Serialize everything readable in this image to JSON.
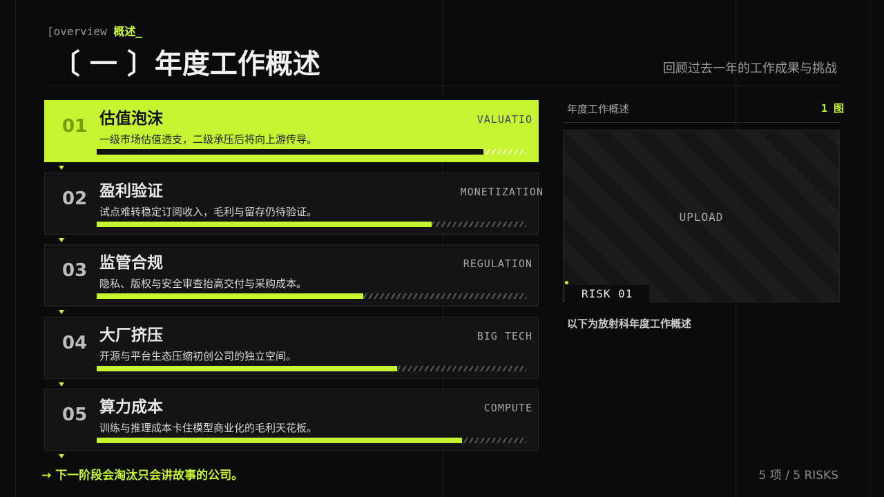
{
  "header": {
    "tag_prefix": "[overview",
    "tag_suffix": "概述_",
    "title": "〔 一 〕年度工作概述",
    "subtitle": "回顾过去一年的工作成果与挑战"
  },
  "items": [
    {
      "number": "01",
      "title": "估值泡沫",
      "description": "一级市场估值透支，二级承压后将向上游传导。",
      "tag": "VALUATIO",
      "progress": 90
    },
    {
      "number": "02",
      "title": "盈利验证",
      "description": "试点难转稳定订阅收入，毛利与留存仍待验证。",
      "tag": "MONETIZATION",
      "progress": 78
    },
    {
      "number": "03",
      "title": "监管合规",
      "description": "隐私、版权与安全审查抬高交付与采购成本。",
      "tag": "REGULATION",
      "progress": 62
    },
    {
      "number": "04",
      "title": "大厂挤压",
      "description": "开源与平台生态压缩初创公司的独立空间。",
      "tag": "BIG TECH",
      "progress": 70
    },
    {
      "number": "05",
      "title": "算力成本",
      "description": "训练与推理成本卡住模型商业化的毛利天花板。",
      "tag": "COMPUTE",
      "progress": 85
    }
  ],
  "panel": {
    "title": "年度工作概述",
    "count": "1 图",
    "placeholder": "UPLOAD",
    "badge": "RISK 01",
    "caption": "以下为放射科年度工作概述"
  },
  "footer": {
    "arrow": "→",
    "note": "下一阶段会淘汰只会讲故事的公司。",
    "summary": "5 项 / 5 RISKS"
  }
}
